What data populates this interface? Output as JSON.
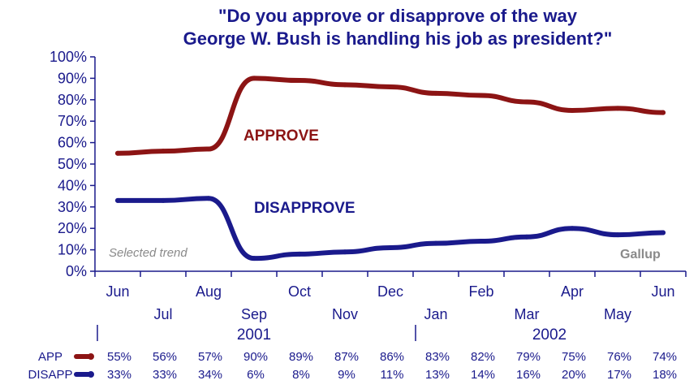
{
  "chart_data": {
    "type": "line",
    "title": "\"Do you approve or disapprove of the way George W. Bush is handling his job as president?\"",
    "title_lines": [
      "\"Do you approve or disapprove of the way",
      "George W. Bush is handling his job as president?\""
    ],
    "x": [
      "Jun",
      "Jul",
      "Aug",
      "Sep",
      "Oct",
      "Nov",
      "Dec",
      "Jan",
      "Feb",
      "Mar",
      "Apr",
      "May",
      "Jun"
    ],
    "years": [
      {
        "label": "2001"
      },
      {
        "label": "2002"
      }
    ],
    "y_ticks": [
      "0%",
      "10%",
      "20%",
      "30%",
      "40%",
      "50%",
      "60%",
      "70%",
      "80%",
      "90%",
      "100%"
    ],
    "ylim": [
      0,
      100
    ],
    "grid": false,
    "series": [
      {
        "name": "APPROVE",
        "table_label": "APP",
        "color": "#8c1414",
        "values": [
          55,
          56,
          57,
          90,
          89,
          87,
          86,
          83,
          82,
          79,
          75,
          76,
          74
        ],
        "value_labels": [
          "55%",
          "56%",
          "57%",
          "90%",
          "89%",
          "87%",
          "86%",
          "83%",
          "82%",
          "79%",
          "75%",
          "76%",
          "74%"
        ]
      },
      {
        "name": "DISAPPROVE",
        "table_label": "DISAPP",
        "color": "#1a1a8c",
        "values": [
          33,
          33,
          34,
          6,
          8,
          9,
          11,
          13,
          14,
          16,
          20,
          17,
          18
        ],
        "value_labels": [
          "33%",
          "33%",
          "34%",
          "6%",
          "8%",
          "9%",
          "11%",
          "13%",
          "14%",
          "16%",
          "20%",
          "17%",
          "18%"
        ]
      }
    ],
    "annotations": {
      "note": "Selected trend",
      "source": "Gallup"
    },
    "colors": {
      "axis": "#1a1a8c",
      "text": "#1a1a8c",
      "muted": "#8a8a8a"
    }
  }
}
